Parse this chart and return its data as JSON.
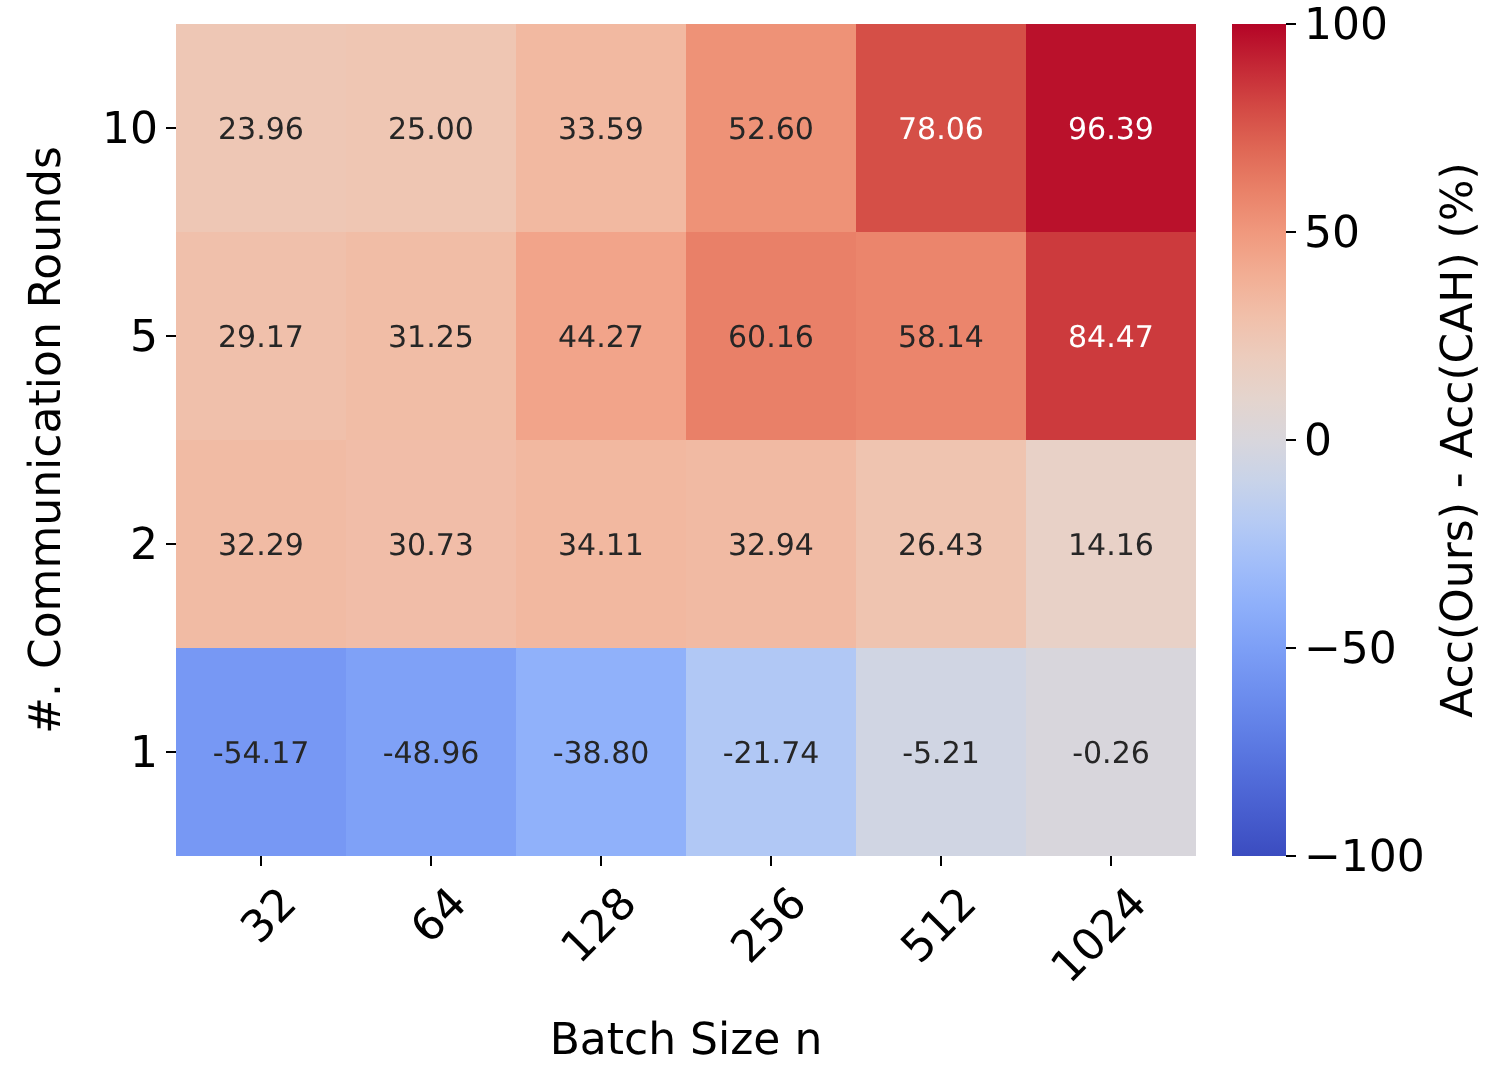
{
  "chart_data": {
    "type": "heatmap",
    "xlabel": "Batch Size n",
    "ylabel": "#. Communication Rounds",
    "clabel": "Acc(Ours) - Acc(CAH) (%)",
    "categories": [
      "32",
      "64",
      "128",
      "256",
      "512",
      "1024"
    ],
    "y_categories": [
      "10",
      "5",
      "2",
      "1"
    ],
    "cells": [
      [
        23.96,
        25.0,
        33.59,
        52.6,
        78.06,
        96.39
      ],
      [
        29.17,
        31.25,
        44.27,
        60.16,
        58.14,
        84.47
      ],
      [
        32.29,
        30.73,
        34.11,
        32.94,
        26.43,
        14.16
      ],
      [
        -54.17,
        -48.96,
        -38.8,
        -21.74,
        -5.21,
        -0.26
      ]
    ],
    "cell_labels": [
      [
        "23.96",
        "25.00",
        "33.59",
        "52.60",
        "78.06",
        "96.39"
      ],
      [
        "29.17",
        "31.25",
        "44.27",
        "60.16",
        "58.14",
        "84.47"
      ],
      [
        "32.29",
        "30.73",
        "34.11",
        "32.94",
        "26.43",
        "14.16"
      ],
      [
        "-54.17",
        "-48.96",
        "-38.80",
        "-21.74",
        "-5.21",
        "-0.26"
      ]
    ],
    "clim": [
      -100,
      100
    ],
    "cticks": [
      -100,
      -50,
      0,
      50,
      100
    ]
  }
}
